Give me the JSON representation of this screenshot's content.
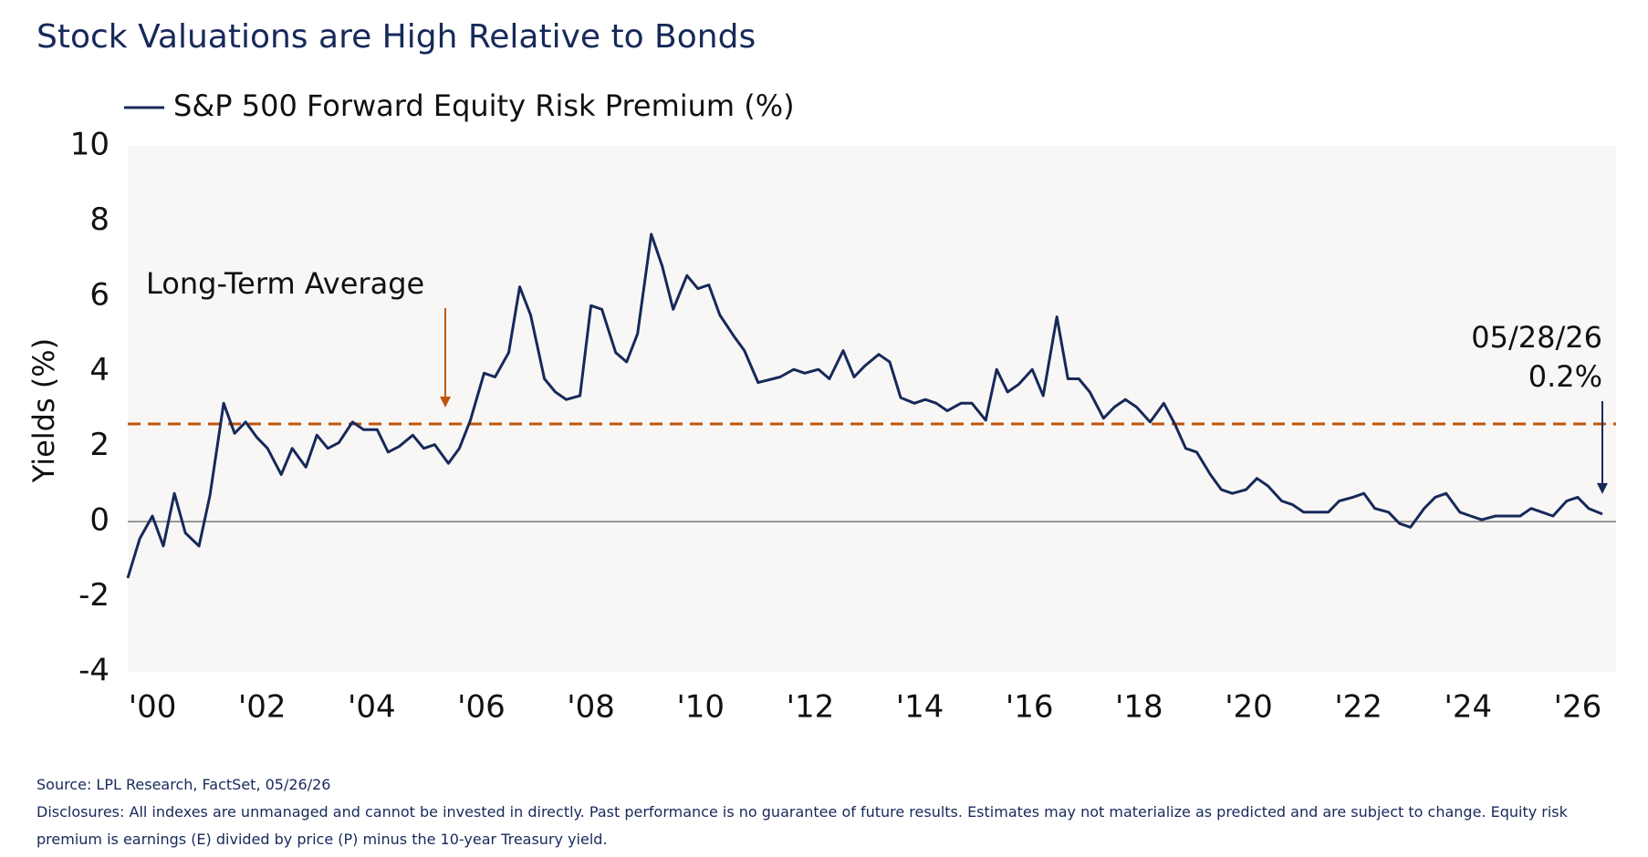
{
  "chart_data": {
    "type": "line",
    "title": "Stock Valuations are High Relative to Bonds",
    "ylabel": "Yields (%)",
    "x": [
      1999.55,
      1999.77,
      2000.0,
      2000.2,
      2000.4,
      2000.6,
      2000.85,
      2001.05,
      2001.3,
      2001.5,
      2001.7,
      2001.9,
      2002.1,
      2002.35,
      2002.55,
      2002.8,
      2003.0,
      2003.2,
      2003.4,
      2003.65,
      2003.85,
      2004.1,
      2004.3,
      2004.5,
      2004.75,
      2004.95,
      2005.15,
      2005.4,
      2005.6,
      2005.8,
      2006.05,
      2006.25,
      2006.5,
      2006.7,
      2006.9,
      2007.15,
      2007.35,
      2007.55,
      2007.8,
      2008.0,
      2008.2,
      2008.45,
      2008.65,
      2008.85,
      2009.1,
      2009.3,
      2009.5,
      2009.75,
      2009.95,
      2010.15,
      2010.35,
      2010.6,
      2010.8,
      2011.05,
      2011.45,
      2011.7,
      2011.9,
      2012.15,
      2012.35,
      2012.6,
      2012.8,
      2013.0,
      2013.25,
      2013.45,
      2013.65,
      2013.9,
      2014.1,
      2014.3,
      2014.5,
      2014.75,
      2014.95,
      2015.2,
      2015.4,
      2015.6,
      2015.8,
      2016.05,
      2016.25,
      2016.5,
      2016.7,
      2016.9,
      2017.1,
      2017.35,
      2017.55,
      2017.75,
      2017.95,
      2018.2,
      2018.45,
      2018.65,
      2018.85,
      2019.05,
      2019.3,
      2019.5,
      2019.7,
      2019.95,
      2020.15,
      2020.35,
      2020.6,
      2020.8,
      2021.0,
      2021.25,
      2021.45,
      2021.65,
      2021.9,
      2022.1,
      2022.3,
      2022.55,
      2022.75,
      2022.95,
      2023.2,
      2023.4,
      2023.6,
      2023.85,
      2024.05,
      2024.25,
      2024.5,
      2024.7,
      2024.95,
      2025.15,
      2025.35,
      2025.55,
      2025.8,
      2026.0,
      2026.2,
      2026.45
    ],
    "series": [
      {
        "name": "S&P 500 Forward Equity Risk Premium (%)",
        "color": "#17295a",
        "values": [
          -1.5,
          -0.45,
          0.15,
          -0.65,
          0.75,
          -0.3,
          -0.65,
          0.7,
          3.15,
          2.35,
          2.65,
          2.25,
          1.95,
          1.25,
          1.95,
          1.45,
          2.3,
          1.95,
          2.1,
          2.65,
          2.45,
          2.45,
          1.85,
          2.0,
          2.3,
          1.95,
          2.05,
          1.55,
          1.95,
          2.7,
          3.95,
          3.85,
          4.5,
          6.25,
          5.5,
          3.8,
          3.45,
          3.25,
          3.35,
          5.75,
          5.65,
          4.5,
          4.25,
          5.0,
          7.65,
          6.8,
          5.65,
          6.55,
          6.2,
          6.3,
          5.5,
          4.95,
          4.55,
          3.7,
          3.85,
          4.05,
          3.95,
          4.05,
          3.8,
          4.55,
          3.85,
          4.15,
          4.45,
          4.25,
          3.3,
          3.15,
          3.25,
          3.15,
          2.95,
          3.15,
          3.15,
          2.7,
          4.05,
          3.45,
          3.65,
          4.05,
          3.35,
          5.45,
          3.8,
          3.8,
          3.45,
          2.75,
          3.05,
          3.25,
          3.05,
          2.65,
          3.15,
          2.6,
          1.95,
          1.85,
          1.25,
          0.85,
          0.75,
          0.85,
          1.15,
          0.95,
          0.55,
          0.45,
          0.25,
          0.25,
          0.25,
          0.55,
          0.65,
          0.75,
          0.35,
          0.25,
          -0.05,
          -0.15,
          0.35,
          0.65,
          0.75,
          0.25,
          0.15,
          0.05,
          0.15,
          0.15,
          0.15,
          0.35,
          0.25,
          0.15,
          0.55,
          0.65,
          0.35,
          0.2
        ]
      }
    ],
    "xlim": [
      1999.55,
      2026.7
    ],
    "xticks": [
      {
        "value": 2000,
        "label": "'00"
      },
      {
        "value": 2002,
        "label": "'02"
      },
      {
        "value": 2004,
        "label": "'04"
      },
      {
        "value": 2006,
        "label": "'06"
      },
      {
        "value": 2008,
        "label": "'08"
      },
      {
        "value": 2010,
        "label": "'10"
      },
      {
        "value": 2012,
        "label": "'12"
      },
      {
        "value": 2014,
        "label": "'14"
      },
      {
        "value": 2016,
        "label": "'16"
      },
      {
        "value": 2018,
        "label": "'18"
      },
      {
        "value": 2020,
        "label": "'20"
      },
      {
        "value": 2022,
        "label": "'22"
      },
      {
        "value": 2024,
        "label": "'24"
      },
      {
        "value": 2026,
        "label": "'26"
      }
    ],
    "ylim": [
      -4,
      10
    ],
    "yticks": [
      -4,
      -2,
      0,
      2,
      4,
      6,
      8,
      10
    ],
    "reference_line": {
      "value": 2.6,
      "color": "#c0560e",
      "label": "Long-Term Average"
    },
    "end_annotation": {
      "date": "05/28/26",
      "label": "0.2%"
    },
    "source": "Source: LPL Research, FactSet, 05/26/26",
    "disclosures": "Disclosures: All indexes are unmanaged and cannot be invested in directly. Past performance is no guarantee of future results. Estimates may not materialize as predicted and are subject to change. Equity risk premium is earnings (E) divided by price (P) minus the 10-year Treasury yield."
  }
}
